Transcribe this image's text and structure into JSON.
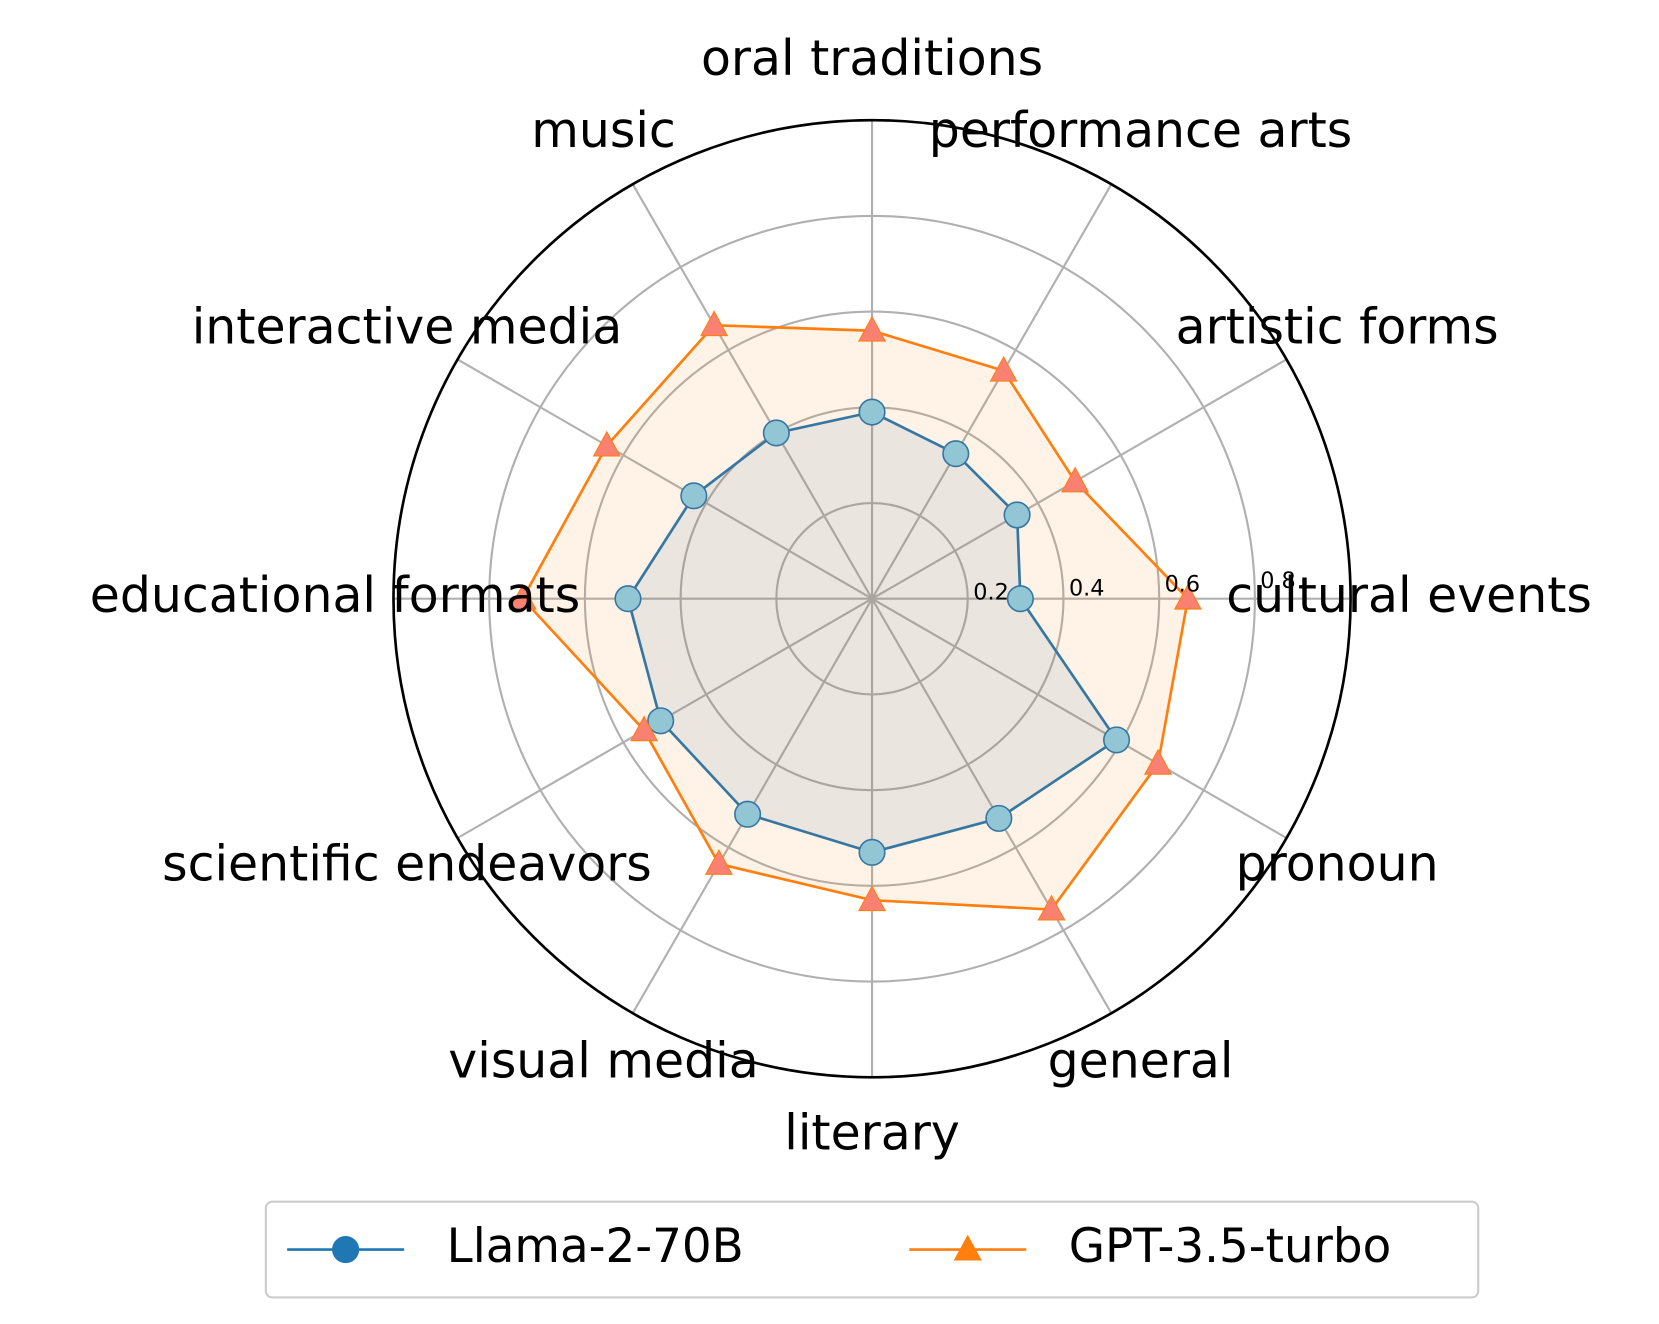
{
  "chart_data": {
    "type": "radar",
    "categories": [
      "cultural events",
      "artistic forms",
      "performance arts",
      "oral traditions",
      "music",
      "interactive media",
      "educational formats",
      "scientific endeavors",
      "visual media",
      "literary",
      "general",
      "pronoun"
    ],
    "series": [
      {
        "name": "Llama-2-70B",
        "color": "#1f77b4",
        "marker_color": "#87ceeb",
        "marker": "circle",
        "values": [
          0.31,
          0.35,
          0.35,
          0.39,
          0.4,
          0.43,
          0.51,
          0.51,
          0.52,
          0.53,
          0.53,
          0.59
        ]
      },
      {
        "name": "GPT-3.5-turbo",
        "color": "#ff7f0e",
        "marker_color": "#fa8072",
        "marker": "triangle",
        "values": [
          0.66,
          0.49,
          0.55,
          0.56,
          0.66,
          0.64,
          0.73,
          0.55,
          0.64,
          0.63,
          0.75,
          0.69
        ]
      }
    ],
    "ylim": [
      0,
      1
    ],
    "yticks": [
      0.2,
      0.4,
      0.6,
      0.8
    ],
    "grid": true,
    "legend": "lower center"
  }
}
